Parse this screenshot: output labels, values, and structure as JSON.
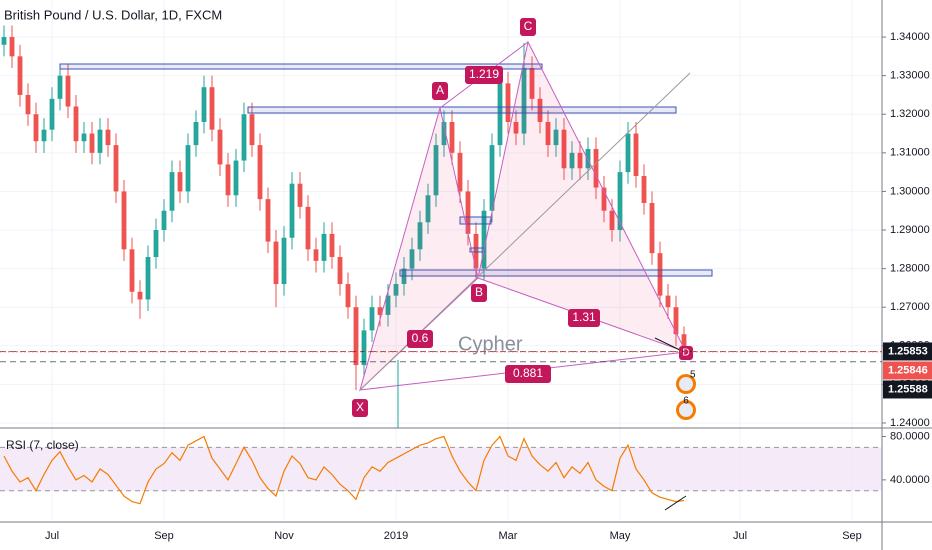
{
  "chart_data": {
    "type": "candlestick",
    "title": "British Pound / U.S. Dollar, 1D, FXCM",
    "categories": [
      null,
      null,
      null,
      null,
      null,
      null,
      "Jul",
      null,
      null,
      null,
      null,
      null,
      null,
      null,
      null,
      null,
      null,
      null,
      null,
      null,
      "Sep",
      null,
      null,
      null,
      null,
      null,
      null,
      null,
      null,
      null,
      null,
      null,
      null,
      null,
      null,
      "Nov",
      null,
      null,
      null,
      null,
      null,
      null,
      null,
      null,
      null,
      null,
      null,
      null,
      null,
      "2019",
      null,
      null,
      null,
      null,
      null,
      null,
      null,
      null,
      null,
      null,
      null,
      null,
      null,
      "Mar",
      null,
      null,
      null,
      null,
      null,
      null,
      null,
      null,
      null,
      null,
      null,
      null,
      null,
      "May",
      null,
      null,
      null,
      null,
      null,
      null,
      null,
      null,
      null,
      null,
      null,
      null,
      null,
      null,
      "Jul",
      null,
      null,
      null,
      null,
      null,
      null,
      null,
      null,
      null,
      null,
      null,
      null,
      null,
      "Sep",
      null,
      null,
      null
    ],
    "open": [
      1.338,
      1.34,
      1.335,
      1.325,
      1.32,
      1.313,
      1.316,
      1.324,
      1.33,
      1.322,
      1.313,
      1.315,
      1.31,
      1.316,
      1.312,
      1.3,
      1.285,
      1.274,
      1.272,
      1.283,
      1.29,
      1.295,
      1.305,
      1.3,
      1.312,
      1.318,
      1.327,
      1.316,
      1.307,
      1.299,
      1.308,
      1.32,
      1.312,
      1.298,
      1.287,
      1.276,
      1.288,
      1.302,
      1.296,
      1.285,
      1.282,
      1.289,
      1.283,
      1.276,
      1.27,
      1.255,
      1.264,
      1.27,
      1.268,
      1.273,
      1.276,
      1.28,
      1.285,
      1.292,
      1.299,
      1.312,
      1.318,
      1.31,
      1.3,
      1.289,
      1.28,
      1.295,
      1.312,
      1.328,
      1.318,
      1.315,
      1.332,
      1.324,
      1.318,
      1.312,
      1.316,
      1.306,
      1.31,
      1.306,
      1.311,
      1.301,
      1.295,
      1.29,
      1.305,
      1.315,
      1.304,
      1.297,
      1.284,
      1.273,
      1.27,
      1.263,
      null,
      null,
      null,
      null,
      null,
      null,
      null,
      null,
      null,
      null,
      null,
      null,
      null,
      null,
      null,
      null,
      null,
      null,
      null,
      null,
      null,
      null,
      null,
      null
    ],
    "high": [
      1.343,
      1.343,
      1.338,
      1.328,
      1.323,
      1.319,
      1.327,
      1.333,
      1.333,
      1.325,
      1.318,
      1.318,
      1.319,
      1.319,
      1.315,
      1.303,
      1.288,
      1.277,
      1.286,
      1.293,
      1.298,
      1.308,
      1.308,
      1.315,
      1.321,
      1.33,
      1.33,
      1.319,
      1.31,
      1.311,
      1.323,
      1.323,
      1.315,
      1.301,
      1.29,
      1.291,
      1.305,
      1.305,
      1.299,
      1.288,
      1.292,
      1.292,
      1.286,
      1.279,
      1.273,
      1.267,
      1.273,
      1.273,
      1.276,
      1.279,
      1.283,
      1.288,
      1.295,
      1.302,
      1.315,
      1.321,
      1.321,
      1.313,
      1.303,
      1.292,
      1.298,
      1.315,
      1.331,
      1.331,
      1.321,
      1.3385,
      1.335,
      1.327,
      1.321,
      1.319,
      1.319,
      1.313,
      1.313,
      1.314,
      1.314,
      1.304,
      1.298,
      1.308,
      1.318,
      1.318,
      1.307,
      1.3,
      1.287,
      1.276,
      1.273,
      1.265,
      null,
      null,
      null,
      null,
      null,
      null,
      null,
      null,
      null,
      null,
      null,
      null,
      null,
      null,
      null,
      null,
      null,
      null,
      null,
      null,
      null,
      null,
      null,
      null
    ],
    "low": [
      1.335,
      1.332,
      1.322,
      1.317,
      1.31,
      1.31,
      1.313,
      1.321,
      1.319,
      1.31,
      1.31,
      1.307,
      1.307,
      1.309,
      1.297,
      1.282,
      1.271,
      1.267,
      1.269,
      1.28,
      1.287,
      1.292,
      1.297,
      1.297,
      1.309,
      1.315,
      1.313,
      1.304,
      1.296,
      1.296,
      1.305,
      1.309,
      1.295,
      1.284,
      1.27,
      1.273,
      1.285,
      1.293,
      1.282,
      1.279,
      1.279,
      1.28,
      1.273,
      1.267,
      1.2485,
      1.252,
      1.261,
      1.265,
      1.265,
      1.27,
      1.273,
      1.277,
      1.282,
      1.289,
      1.296,
      1.309,
      1.307,
      1.297,
      1.286,
      1.2775,
      1.277,
      1.292,
      1.309,
      1.315,
      1.312,
      1.312,
      1.321,
      1.315,
      1.309,
      1.309,
      1.303,
      1.303,
      1.303,
      1.303,
      1.298,
      1.292,
      1.287,
      1.287,
      1.302,
      1.301,
      1.294,
      1.281,
      1.27,
      1.267,
      1.26,
      1.257,
      null,
      null,
      null,
      null,
      null,
      null,
      null,
      null,
      null,
      null,
      null,
      null,
      null,
      null,
      null,
      null,
      null,
      null,
      null,
      null,
      null,
      null,
      null,
      null
    ],
    "close": [
      1.34,
      1.335,
      1.325,
      1.32,
      1.313,
      1.316,
      1.324,
      1.33,
      1.322,
      1.313,
      1.315,
      1.31,
      1.316,
      1.312,
      1.3,
      1.285,
      1.274,
      1.272,
      1.283,
      1.29,
      1.295,
      1.305,
      1.3,
      1.312,
      1.318,
      1.327,
      1.316,
      1.307,
      1.299,
      1.308,
      1.32,
      1.312,
      1.298,
      1.287,
      1.276,
      1.288,
      1.302,
      1.296,
      1.285,
      1.282,
      1.289,
      1.283,
      1.276,
      1.27,
      1.255,
      1.264,
      1.27,
      1.268,
      1.273,
      1.276,
      1.28,
      1.285,
      1.292,
      1.299,
      1.312,
      1.318,
      1.31,
      1.3,
      1.289,
      1.28,
      1.295,
      1.312,
      1.328,
      1.318,
      1.315,
      1.332,
      1.324,
      1.318,
      1.312,
      1.316,
      1.306,
      1.31,
      1.306,
      1.311,
      1.301,
      1.295,
      1.29,
      1.305,
      1.315,
      1.304,
      1.297,
      1.284,
      1.273,
      1.27,
      1.263,
      1.2585,
      null,
      null,
      null,
      null,
      null,
      null,
      null,
      null,
      null,
      null,
      null,
      null,
      null,
      null,
      null,
      null,
      null,
      null,
      null,
      null,
      null,
      null,
      null,
      null
    ],
    "up_color": "#26a69a",
    "down_color": "#ef5350",
    "ylim": [
      1.2387,
      1.3496
    ],
    "yticks": [
      {
        "value": 1.24,
        "label": "1.24000"
      },
      {
        "value": 1.25,
        "label": "1.25000"
      },
      {
        "value": 1.26,
        "label": "1.26000"
      },
      {
        "value": 1.27,
        "label": "1.27000"
      },
      {
        "value": 1.28,
        "label": "1.28000"
      },
      {
        "value": 1.29,
        "label": "1.29000"
      },
      {
        "value": 1.3,
        "label": "1.30000"
      },
      {
        "value": 1.31,
        "label": "1.31000"
      },
      {
        "value": 1.32,
        "label": "1.32000"
      },
      {
        "value": 1.33,
        "label": "1.33000"
      },
      {
        "value": 1.34,
        "label": "1.34000"
      }
    ],
    "price_lines": [
      {
        "value": 1.25853,
        "color": "#131722"
      },
      {
        "value": 1.25846,
        "color": "#ef5350"
      },
      {
        "value": 1.25588,
        "color": "#131722"
      }
    ],
    "annotations": {
      "points": [
        "X",
        "A",
        "B",
        "C",
        "D"
      ],
      "ratios": [
        "1.219",
        "0.6",
        "1.31",
        "0.881"
      ],
      "pattern": "Cypher",
      "events": [
        "5",
        "6"
      ]
    },
    "rsi": {
      "type": "line",
      "title": "RSI (7, close)",
      "color": "#f57c00",
      "ylim": [
        3,
        86
      ],
      "yticks": [
        {
          "value": 80,
          "label": "80.0000"
        },
        {
          "value": 40,
          "label": "40.0000"
        }
      ],
      "bands": [
        30,
        70
      ],
      "values": [
        62,
        48,
        38,
        42,
        30,
        45,
        58,
        66,
        52,
        40,
        44,
        38,
        50,
        45,
        35,
        25,
        20,
        18,
        38,
        50,
        55,
        65,
        58,
        72,
        76,
        80,
        60,
        50,
        40,
        55,
        70,
        58,
        42,
        32,
        25,
        48,
        62,
        55,
        42,
        40,
        52,
        45,
        36,
        30,
        22,
        42,
        52,
        48,
        56,
        60,
        64,
        68,
        72,
        74,
        78,
        80,
        62,
        48,
        38,
        30,
        58,
        72,
        80,
        62,
        58,
        78,
        62,
        54,
        48,
        56,
        42,
        52,
        46,
        56,
        40,
        34,
        30,
        60,
        72,
        50,
        40,
        28,
        24,
        22,
        20,
        21,
        null,
        null,
        null,
        null,
        null,
        null,
        null,
        null,
        null,
        null,
        null,
        null,
        null,
        null,
        null,
        null,
        null,
        null,
        null,
        null,
        null,
        null,
        null,
        null
      ]
    }
  }
}
